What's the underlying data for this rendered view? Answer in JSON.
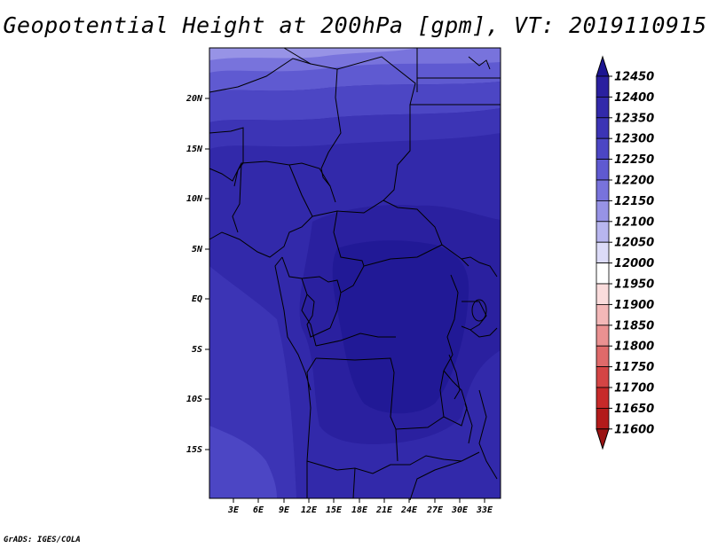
{
  "title": "Geopotential Height at 200hPa [gpm], VT: 2019110915",
  "credit": "GrADS: IGES/COLA",
  "map": {
    "lon_labels": [
      "3E",
      "6E",
      "9E",
      "12E",
      "15E",
      "18E",
      "21E",
      "24E",
      "27E",
      "30E",
      "33E"
    ],
    "lat_labels": [
      "20N",
      "15N",
      "10N",
      "5N",
      "EQ",
      "5S",
      "10S",
      "15S"
    ]
  },
  "colorbar": {
    "levels": [
      "12450",
      "12400",
      "12350",
      "12300",
      "12250",
      "12200",
      "12150",
      "12100",
      "12050",
      "12000",
      "11950",
      "11900",
      "11850",
      "11800",
      "11750",
      "11700",
      "11650",
      "11600"
    ],
    "colors": [
      "#1c1591",
      "#2a209f",
      "#3229aa",
      "#3c34b5",
      "#4c46c4",
      "#5f5ad1",
      "#7873dc",
      "#9793e6",
      "#b8b6ef",
      "#dcdbf8",
      "#ffffff",
      "#fadcdc",
      "#f3b8b8",
      "#ea9191",
      "#df6a6a",
      "#d44545",
      "#c72a2a",
      "#b31b1b",
      "#9a1313"
    ]
  }
}
